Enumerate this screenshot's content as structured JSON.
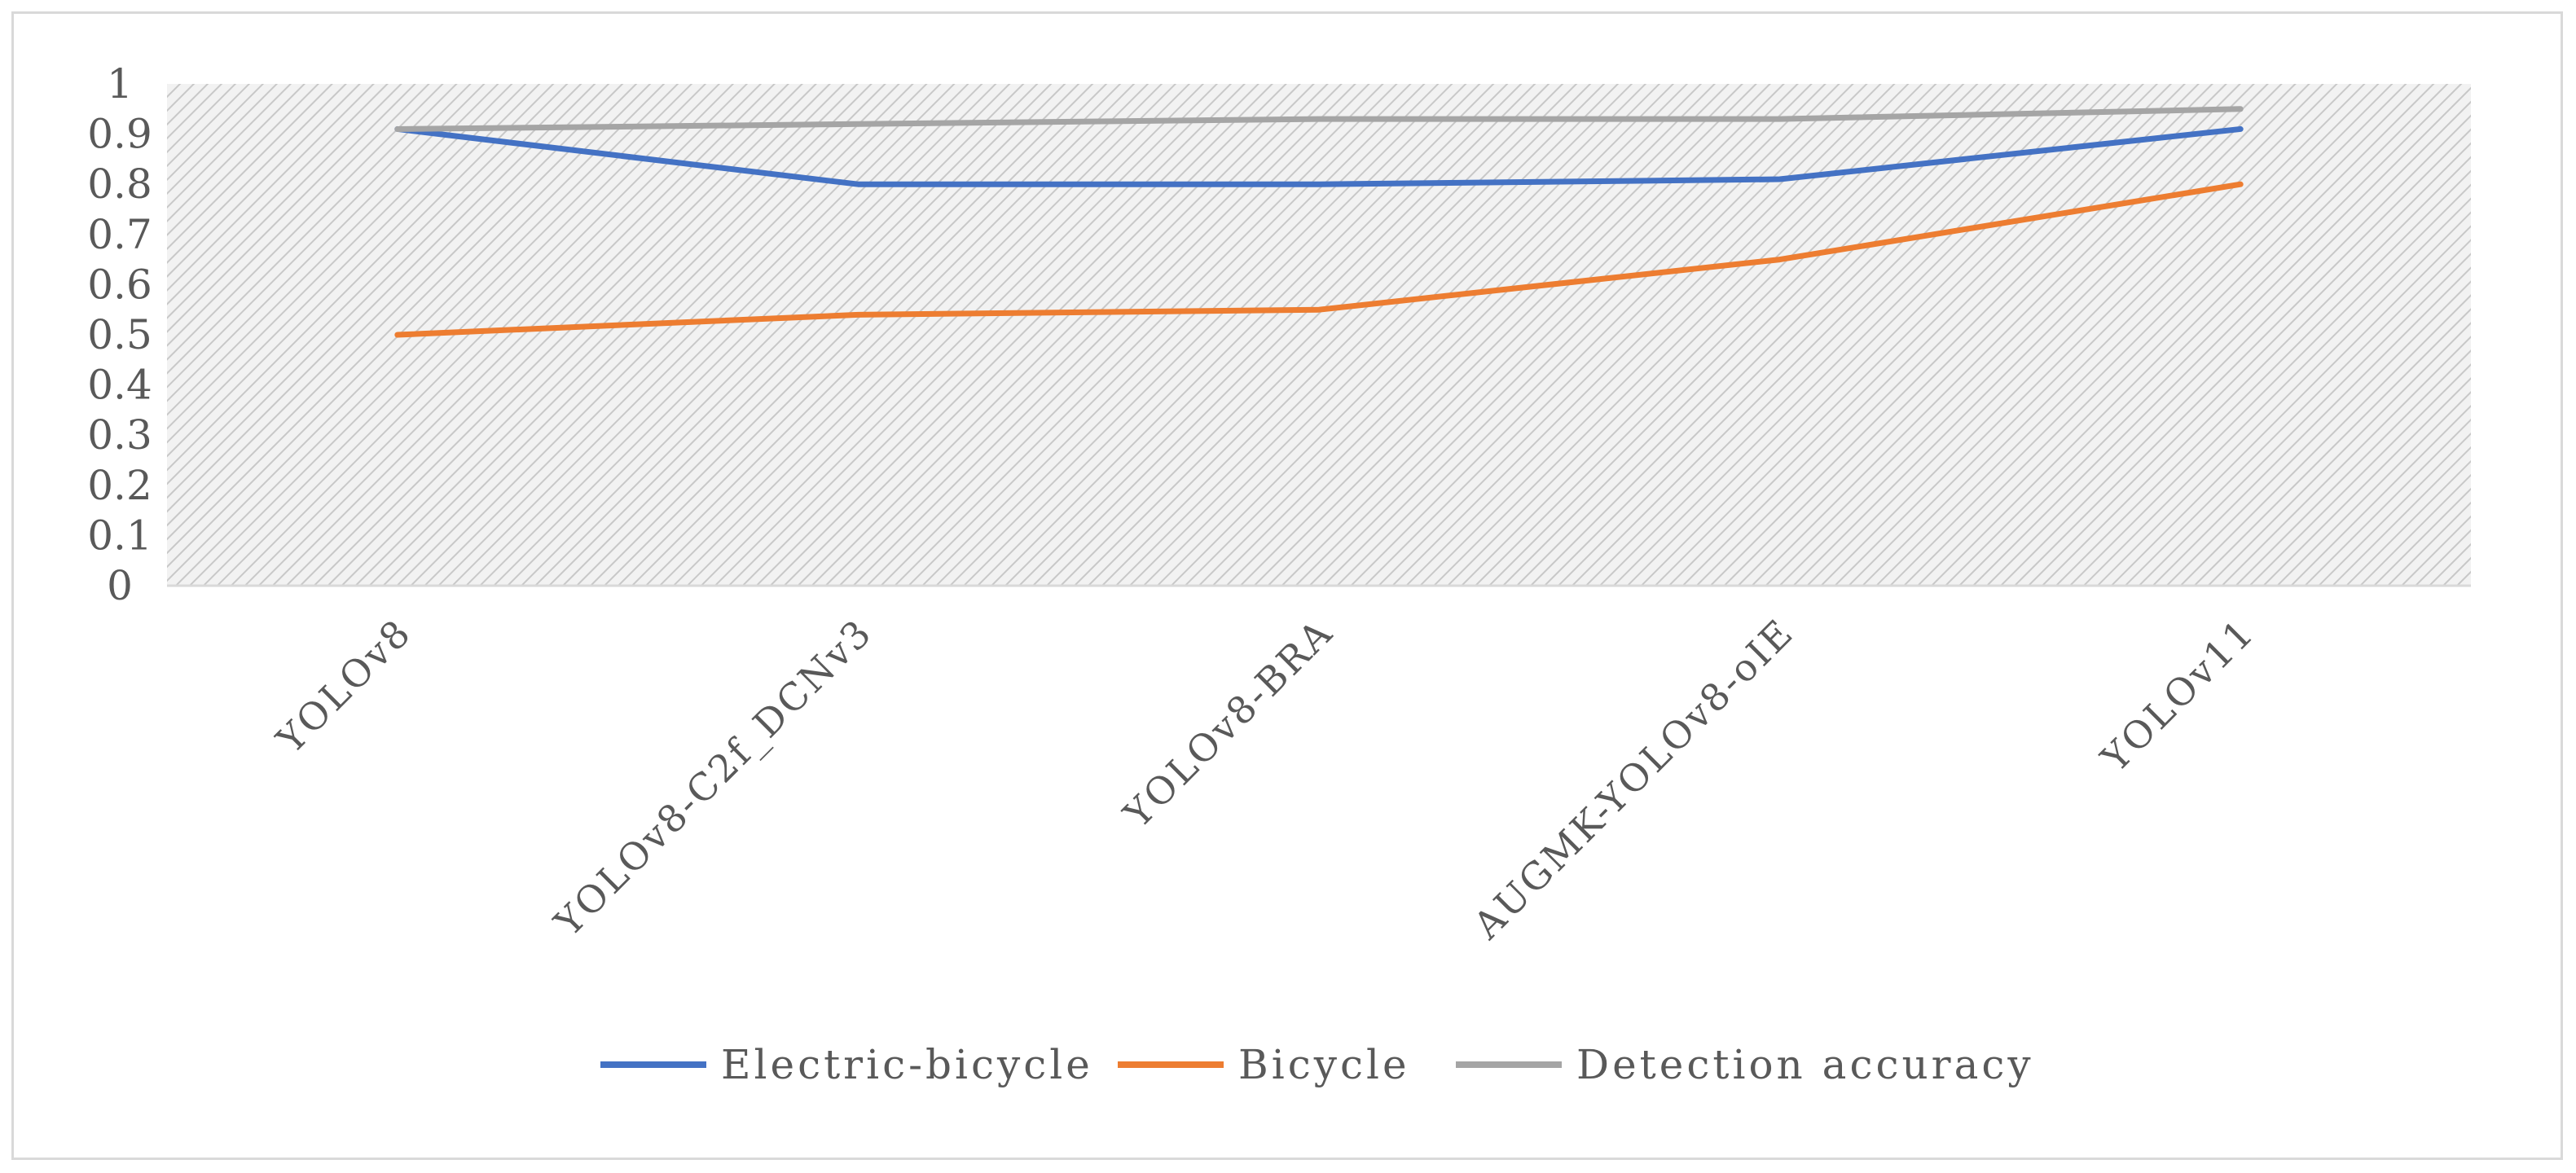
{
  "chart_data": {
    "type": "line",
    "categories": [
      "YOLOv8",
      "YOLOv8-C2f_DCNv3",
      "YOLOv8-BRA",
      "AUGMK-YOLOv8-oIE",
      "YOLOv11"
    ],
    "series": [
      {
        "name": "Electric-bicycle",
        "color": "#4472c4",
        "values": [
          0.91,
          0.8,
          0.8,
          0.81,
          0.91
        ]
      },
      {
        "name": "Bicycle",
        "color": "#ed7d31",
        "values": [
          0.5,
          0.54,
          0.55,
          0.65,
          0.8
        ]
      },
      {
        "name": "Detection accuracy",
        "color": "#a5a5a5",
        "values": [
          0.91,
          0.92,
          0.93,
          0.93,
          0.95
        ]
      }
    ],
    "yticks": [
      "0",
      "0.1",
      "0.2",
      "0.3",
      "0.4",
      "0.5",
      "0.6",
      "0.7",
      "0.8",
      "0.9",
      "1"
    ],
    "ylim": [
      0,
      1
    ],
    "grid": false,
    "legend_position": "bottom",
    "plot_background": "hatched-gray"
  }
}
